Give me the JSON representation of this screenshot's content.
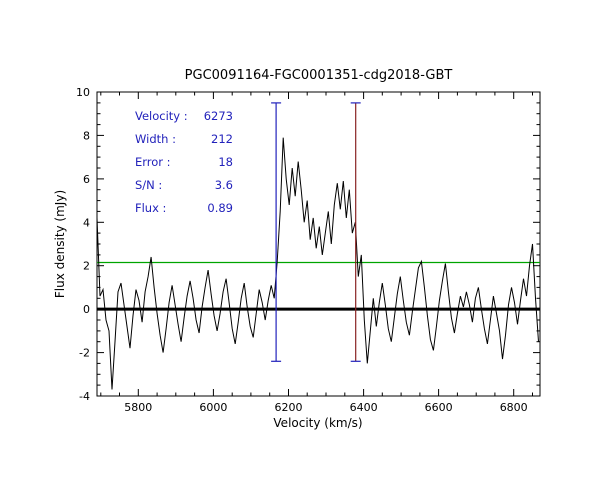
{
  "chart_data": {
    "type": "line",
    "title": "PGC0091164-FGC0001351-cdg2018-GBT",
    "xlabel": "Velocity (km/s)",
    "ylabel": "Flux density (mJy)",
    "xlim": [
      5690,
      6870
    ],
    "ylim": [
      -4,
      10
    ],
    "xticks": [
      5800,
      6000,
      6200,
      6400,
      6600,
      6800
    ],
    "yticks": [
      -4,
      -2,
      0,
      2,
      4,
      6,
      8,
      10
    ],
    "x_minor_step": 50,
    "y_minor_step": 0.5,
    "x_start": 5690,
    "x_step": 8,
    "flux": [
      4.2,
      0.6,
      0.9,
      -0.5,
      -1.0,
      -3.7,
      -1.5,
      0.8,
      1.2,
      0.2,
      -0.8,
      -1.8,
      -0.3,
      0.9,
      0.4,
      -0.6,
      0.8,
      1.5,
      2.4,
      1.0,
      -0.2,
      -1.2,
      -2.0,
      -0.9,
      0.3,
      1.1,
      0.2,
      -0.7,
      -1.5,
      -0.4,
      0.6,
      1.3,
      0.5,
      -0.5,
      -1.1,
      0.1,
      1.0,
      1.8,
      0.7,
      -0.3,
      -1.0,
      -0.2,
      0.8,
      1.4,
      0.3,
      -0.9,
      -1.6,
      -0.6,
      0.5,
      1.2,
      0.1,
      -0.8,
      -1.3,
      -0.2,
      0.9,
      0.3,
      -0.5,
      0.4,
      1.1,
      0.5,
      2.2,
      4.5,
      7.9,
      6.0,
      4.8,
      6.5,
      5.2,
      6.8,
      5.5,
      4.0,
      5.0,
      3.2,
      4.2,
      2.8,
      3.8,
      2.5,
      3.5,
      4.5,
      3.0,
      4.8,
      5.8,
      4.6,
      5.9,
      4.2,
      5.5,
      3.5,
      4.0,
      1.5,
      2.5,
      -0.5,
      -2.5,
      -1.0,
      0.5,
      -0.8,
      0.3,
      1.2,
      0.2,
      -0.9,
      -1.5,
      -0.4,
      0.7,
      1.5,
      0.4,
      -0.6,
      -1.2,
      -0.1,
      0.9,
      1.9,
      2.2,
      1.0,
      -0.3,
      -1.4,
      -1.9,
      -0.8,
      0.4,
      1.3,
      2.1,
      0.8,
      -0.4,
      -1.1,
      -0.2,
      0.6,
      0.1,
      0.8,
      0.2,
      -0.6,
      0.5,
      1.0,
      0.0,
      -0.9,
      -1.6,
      -0.5,
      0.6,
      -0.2,
      -1.0,
      -2.3,
      -1.2,
      0.2,
      1.0,
      0.3,
      -0.7,
      0.4,
      1.4,
      0.6,
      2.0,
      3.0,
      0.5,
      -1.5
    ],
    "baseline_y": 0,
    "threshold_line_y": 2.15,
    "markers": {
      "left_velocity": 6167,
      "right_velocity": 6379,
      "top": 9.5,
      "bottom": -2.4
    },
    "colors": {
      "spectrum": "#000000",
      "threshold": "#00a500",
      "baseline": "#000000",
      "marker_left": "#2222bb",
      "marker_right": "#882222",
      "cap": "#2222bb",
      "annotation": "#2222bb",
      "axis": "#000000"
    }
  },
  "annotations": [
    {
      "label": "Velocity :",
      "value": "6273"
    },
    {
      "label": "Width :",
      "value": "212"
    },
    {
      "label": "Error :",
      "value": "18"
    },
    {
      "label": "S/N :",
      "value": "3.6"
    },
    {
      "label": "Flux :",
      "value": "0.89"
    }
  ]
}
